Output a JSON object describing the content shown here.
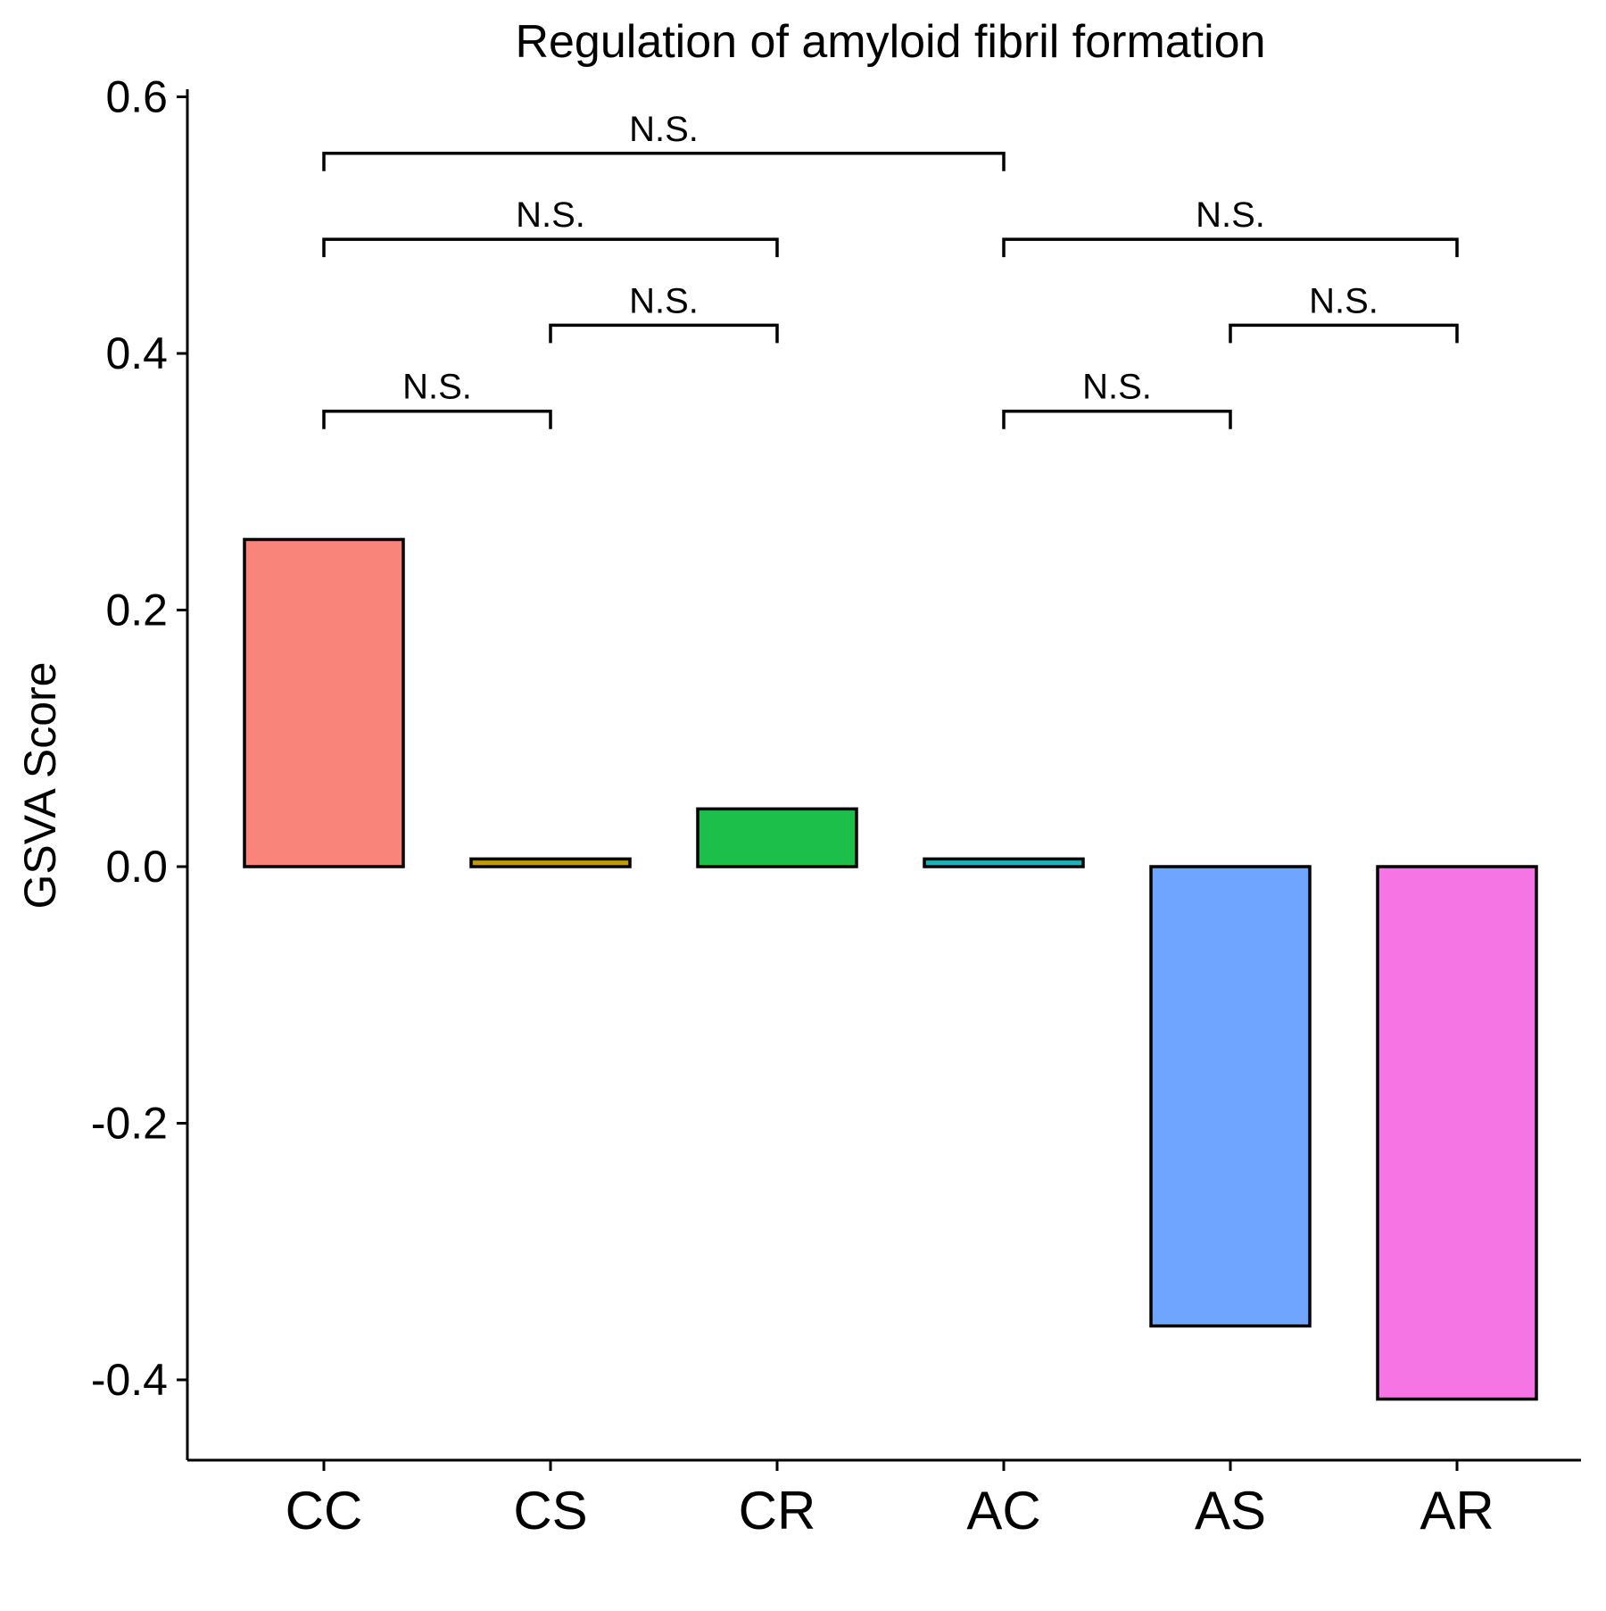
{
  "chart_data": {
    "type": "bar",
    "title": "Regulation of amyloid fibril formation",
    "xlabel": "",
    "ylabel": "GSVA Score",
    "ylim": [
      -0.46,
      0.6
    ],
    "yticks": [
      0.6,
      0.4,
      0.2,
      0.0,
      -0.2,
      -0.4
    ],
    "ytick_labels": [
      "0.6",
      "0.4",
      "0.2",
      "0.0",
      "-0.2",
      "-0.4"
    ],
    "categories": [
      "CC",
      "CS",
      "CR",
      "AC",
      "AS",
      "AR"
    ],
    "values": [
      0.255,
      0.006,
      0.045,
      0.006,
      -0.358,
      -0.415
    ],
    "colors": [
      "#F8847A",
      "#C49A00",
      "#1BBF4A",
      "#18B2C0",
      "#70A5FF",
      "#F475E3"
    ],
    "grid": false,
    "legend": "none",
    "comparisons": [
      {
        "from": "CC",
        "to": "CS",
        "label": "N.S.",
        "y": 0.355
      },
      {
        "from": "CS",
        "to": "CR",
        "label": "N.S.",
        "y": 0.422
      },
      {
        "from": "CC",
        "to": "CR",
        "label": "N.S.",
        "y": 0.489
      },
      {
        "from": "CC",
        "to": "AC",
        "label": "N.S.",
        "y": 0.556
      },
      {
        "from": "AC",
        "to": "AS",
        "label": "N.S.",
        "y": 0.355
      },
      {
        "from": "AS",
        "to": "AR",
        "label": "N.S.",
        "y": 0.422
      },
      {
        "from": "AC",
        "to": "AR",
        "label": "N.S.",
        "y": 0.489
      }
    ]
  }
}
